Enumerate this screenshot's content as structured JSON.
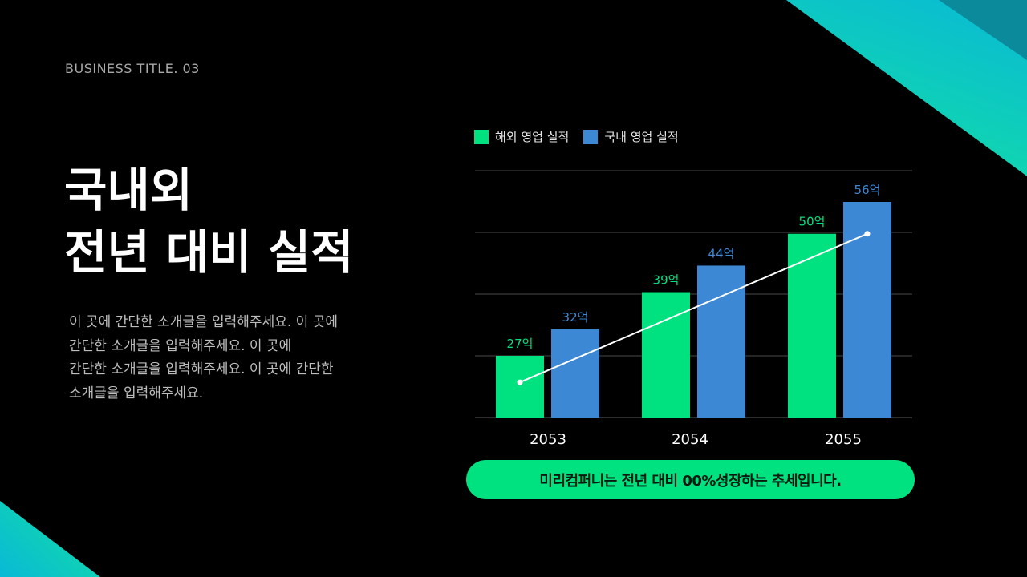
{
  "colors": {
    "background": "#000000",
    "overseas": "#00e17f",
    "domestic": "#3d88d4",
    "trend_line": "#ffffff",
    "accent_teal_start": "#13e2a0",
    "accent_teal_end": "#09b9d6"
  },
  "header": {
    "subtitle": "BUSINESS TITLE. 03"
  },
  "title": {
    "line1": "국내외",
    "line2": "전년 대비 실적"
  },
  "description": {
    "line1": "이 곳에 간단한 소개글을 입력해주세요. 이 곳에",
    "line2": "간단한 소개글을 입력해주세요. 이 곳에",
    "line3": "간단한 소개글을 입력해주세요. 이 곳에 간단한",
    "line4": "소개글을 입력해주세요."
  },
  "legend": {
    "overseas": "해외 영업 실적",
    "domestic": "국내 영업 실적"
  },
  "banner": {
    "text": "미리컴퍼니는 전년 대비 00%성장하는 추세입니다."
  },
  "chart_data": {
    "type": "bar",
    "categories": [
      "2053",
      "2054",
      "2055"
    ],
    "series": [
      {
        "name": "해외 영업 실적",
        "values": [
          27,
          39,
          50
        ],
        "labels": [
          "27억",
          "39억",
          "50억"
        ],
        "color": "#00e17f"
      },
      {
        "name": "국내 영업 실적",
        "values": [
          32,
          44,
          56
        ],
        "labels": [
          "32억",
          "44억",
          "56억"
        ],
        "color": "#3d88d4"
      }
    ],
    "trend_line": {
      "from": {
        "category": "2053",
        "value": 22
      },
      "to": {
        "category": "2055",
        "value": 50
      }
    },
    "ylim": [
      15,
      60
    ],
    "grid": true,
    "legend_position": "top-left"
  }
}
